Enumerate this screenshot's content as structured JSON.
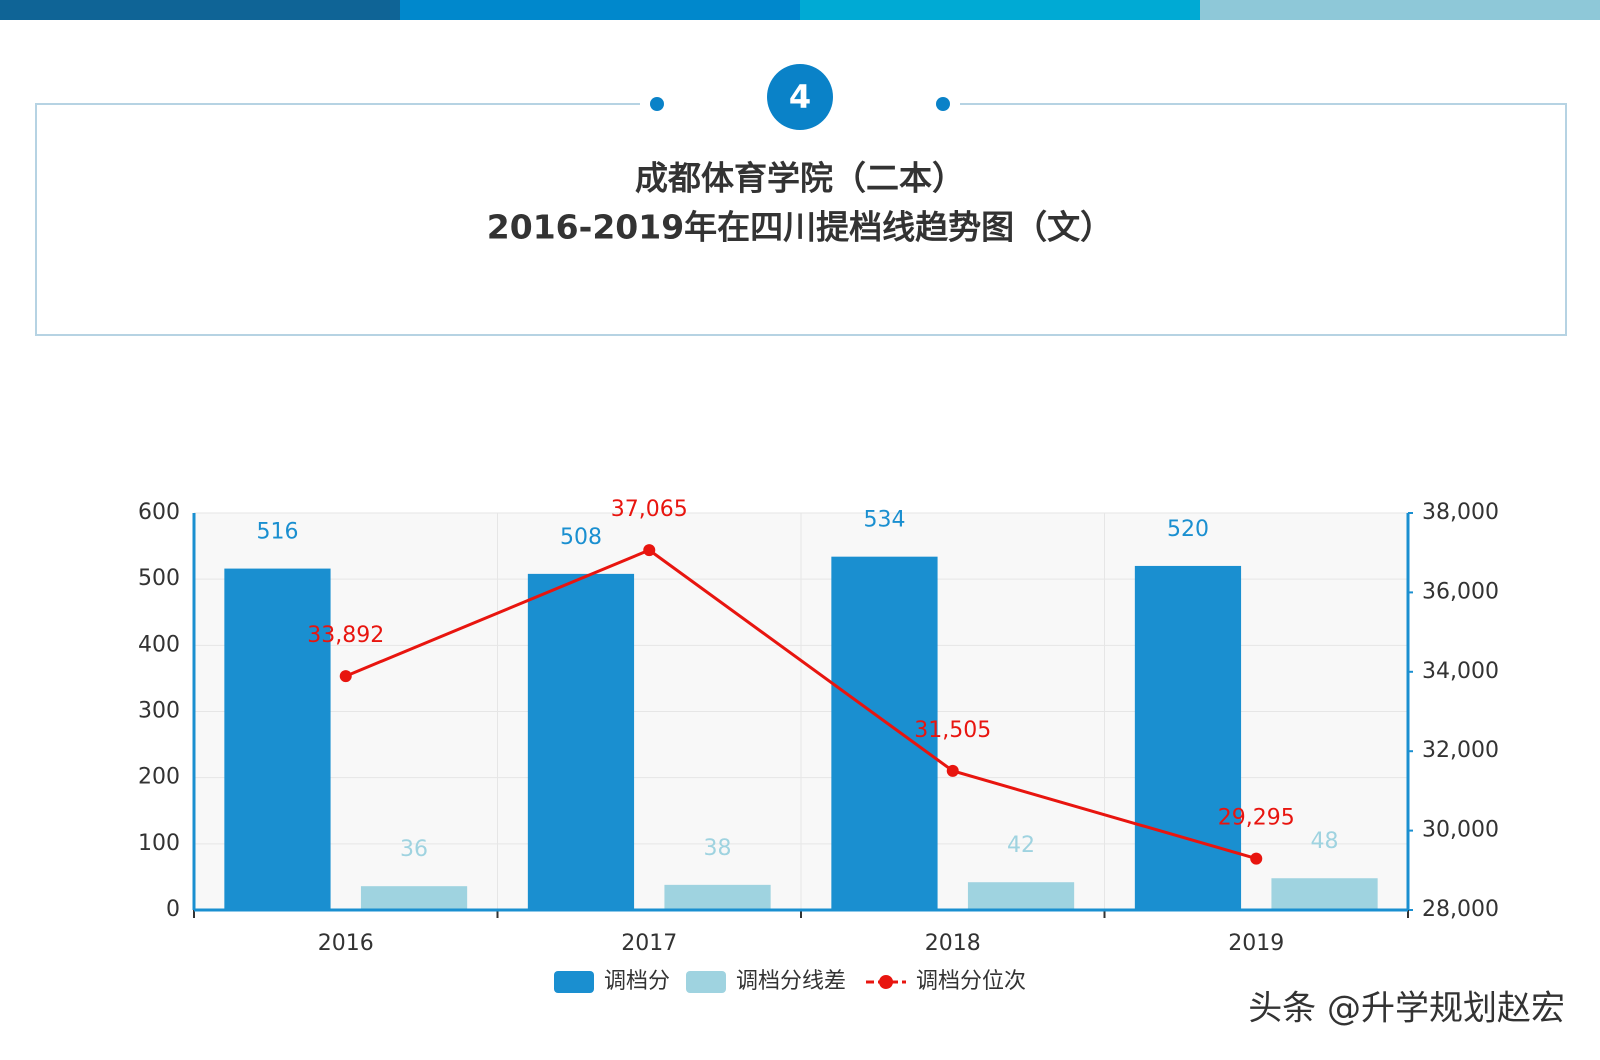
{
  "header": {
    "badge": "4",
    "title_line1": "成都体育学院（二本）",
    "title_line2": "2016-2019年在四川提档线趋势图（文）"
  },
  "watermark": "头条 @升学规划赵宏",
  "chart_data": {
    "type": "bar",
    "categories": [
      "2016",
      "2017",
      "2018",
      "2019"
    ],
    "series": [
      {
        "name": "调档分",
        "color": "#1a8fd0",
        "values": [
          516,
          508,
          534,
          520
        ]
      },
      {
        "name": "调档分线差",
        "color": "#9fd3e0",
        "values": [
          36,
          38,
          42,
          48
        ]
      },
      {
        "name": "调档分位次",
        "color": "#e8150f",
        "type": "line",
        "axis": "y2",
        "values": [
          33892,
          37065,
          31505,
          29295
        ],
        "value_labels": [
          "33,892",
          "37,065",
          "31,505",
          "29,295"
        ]
      }
    ],
    "ylim": [
      0,
      600
    ],
    "yticks": [
      0,
      100,
      200,
      300,
      400,
      500,
      600
    ],
    "y2lim": [
      28000,
      38000
    ],
    "y2ticks": [
      {
        "value": 28000,
        "label": "28,000"
      },
      {
        "value": 30000,
        "label": "30,000"
      },
      {
        "value": 32000,
        "label": "32,000"
      },
      {
        "value": 34000,
        "label": "34,000"
      },
      {
        "value": 36000,
        "label": "36,000"
      },
      {
        "value": 38000,
        "label": "38,000"
      }
    ],
    "grid": true,
    "legend": "bottom"
  }
}
